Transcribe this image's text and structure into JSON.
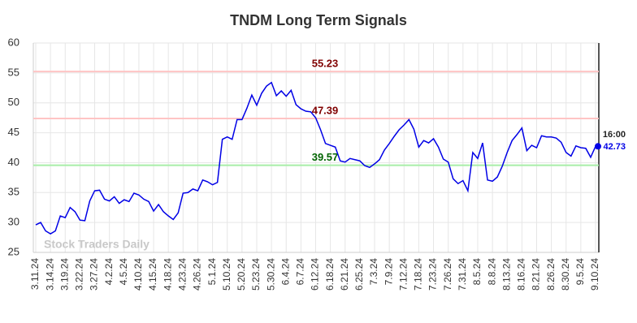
{
  "chart_data": {
    "type": "line",
    "title": "TNDM Long Term Signals",
    "categories": [
      "3.11.24",
      null,
      null,
      "3.14.24",
      null,
      null,
      "3.19.24",
      null,
      null,
      "3.22.24",
      null,
      null,
      "3.27.24",
      null,
      null,
      "4.2.24",
      null,
      null,
      "4.5.24",
      null,
      null,
      "4.10.24",
      null,
      null,
      "4.15.24",
      null,
      null,
      "4.18.24",
      null,
      null,
      "4.23.24",
      null,
      null,
      "4.26.24",
      null,
      null,
      "5.1.24",
      null,
      null,
      "5.10.24",
      null,
      null,
      "5.20.24",
      null,
      null,
      "5.23.24",
      null,
      null,
      "5.30.24",
      null,
      null,
      "6.4.24",
      null,
      null,
      "6.7.24",
      null,
      null,
      "6.12.24",
      null,
      null,
      "6.18.24",
      null,
      null,
      "6.21.24",
      null,
      null,
      "6.25.24",
      null,
      null,
      "7.3.24",
      null,
      null,
      "7.9.24",
      null,
      null,
      "7.12.24",
      null,
      null,
      "7.18.24",
      null,
      null,
      "7.23.24",
      null,
      null,
      "7.26.24",
      null,
      null,
      "7.31.24",
      null,
      null,
      "8.5.24",
      null,
      null,
      "8.8.24",
      null,
      null,
      "8.13.24",
      null,
      null,
      "8.16.24",
      null,
      null,
      "8.21.24",
      null,
      null,
      "8.26.24",
      null,
      null,
      "8.30.24",
      null,
      null,
      "9.5.24",
      null,
      null,
      "9.10.24"
    ],
    "series": [
      {
        "color": "#0000e6",
        "values": [
          29.6,
          30,
          28.6,
          28.1,
          28.6,
          31.1,
          30.8,
          32.5,
          31.8,
          30.4,
          30.3,
          33.6,
          35.3,
          35.4,
          33.9,
          33.6,
          34.3,
          33.2,
          33.8,
          33.5,
          34.9,
          34.6,
          33.9,
          33.5,
          31.9,
          33,
          31.8,
          31.1,
          30.5,
          31.6,
          34.9,
          35,
          35.6,
          35.3,
          37.1,
          36.8,
          36.3,
          36.7,
          43.9,
          44.3,
          43.9,
          47.2,
          47.2,
          49.1,
          51.3,
          49.6,
          51.6,
          52.8,
          53.4,
          51.2,
          52,
          51.1,
          52.1,
          49.7,
          49,
          48.6,
          48.5,
          47.5,
          45.5,
          43.2,
          42.9,
          42.6,
          40.3,
          40.1,
          40.7,
          40.5,
          40.3,
          39.5,
          39.2,
          39.8,
          40.5,
          42.1,
          43.2,
          44.4,
          45.5,
          46.3,
          47.2,
          45.6,
          42.6,
          43.7,
          43.3,
          44,
          42.6,
          40.6,
          40.1,
          37.3,
          36.5,
          37,
          35.3,
          41.7,
          40.7,
          43.3,
          37.1,
          36.9,
          37.6,
          39.4,
          41.7,
          43.7,
          44.7,
          45.8,
          42,
          42.9,
          42.5,
          44.5,
          44.3,
          44.3,
          44.1,
          43.4,
          41.7,
          41.1,
          42.8,
          42.5,
          42.4,
          40.9,
          42.73
        ]
      }
    ],
    "levels": [
      {
        "value": 55.23,
        "color": "#ffc4c4",
        "text_color": "#800000"
      },
      {
        "value": 47.39,
        "color": "#ffc4c4",
        "text_color": "#800000"
      },
      {
        "value": 39.57,
        "color": "#a8eea8",
        "text_color": "#006400"
      }
    ],
    "last_time": "16:00",
    "watermark": "Stock Traders Daily",
    "ylim": [
      25,
      60
    ],
    "yticks": [
      25,
      30,
      35,
      40,
      45,
      50,
      55,
      60
    ],
    "grid": true
  }
}
